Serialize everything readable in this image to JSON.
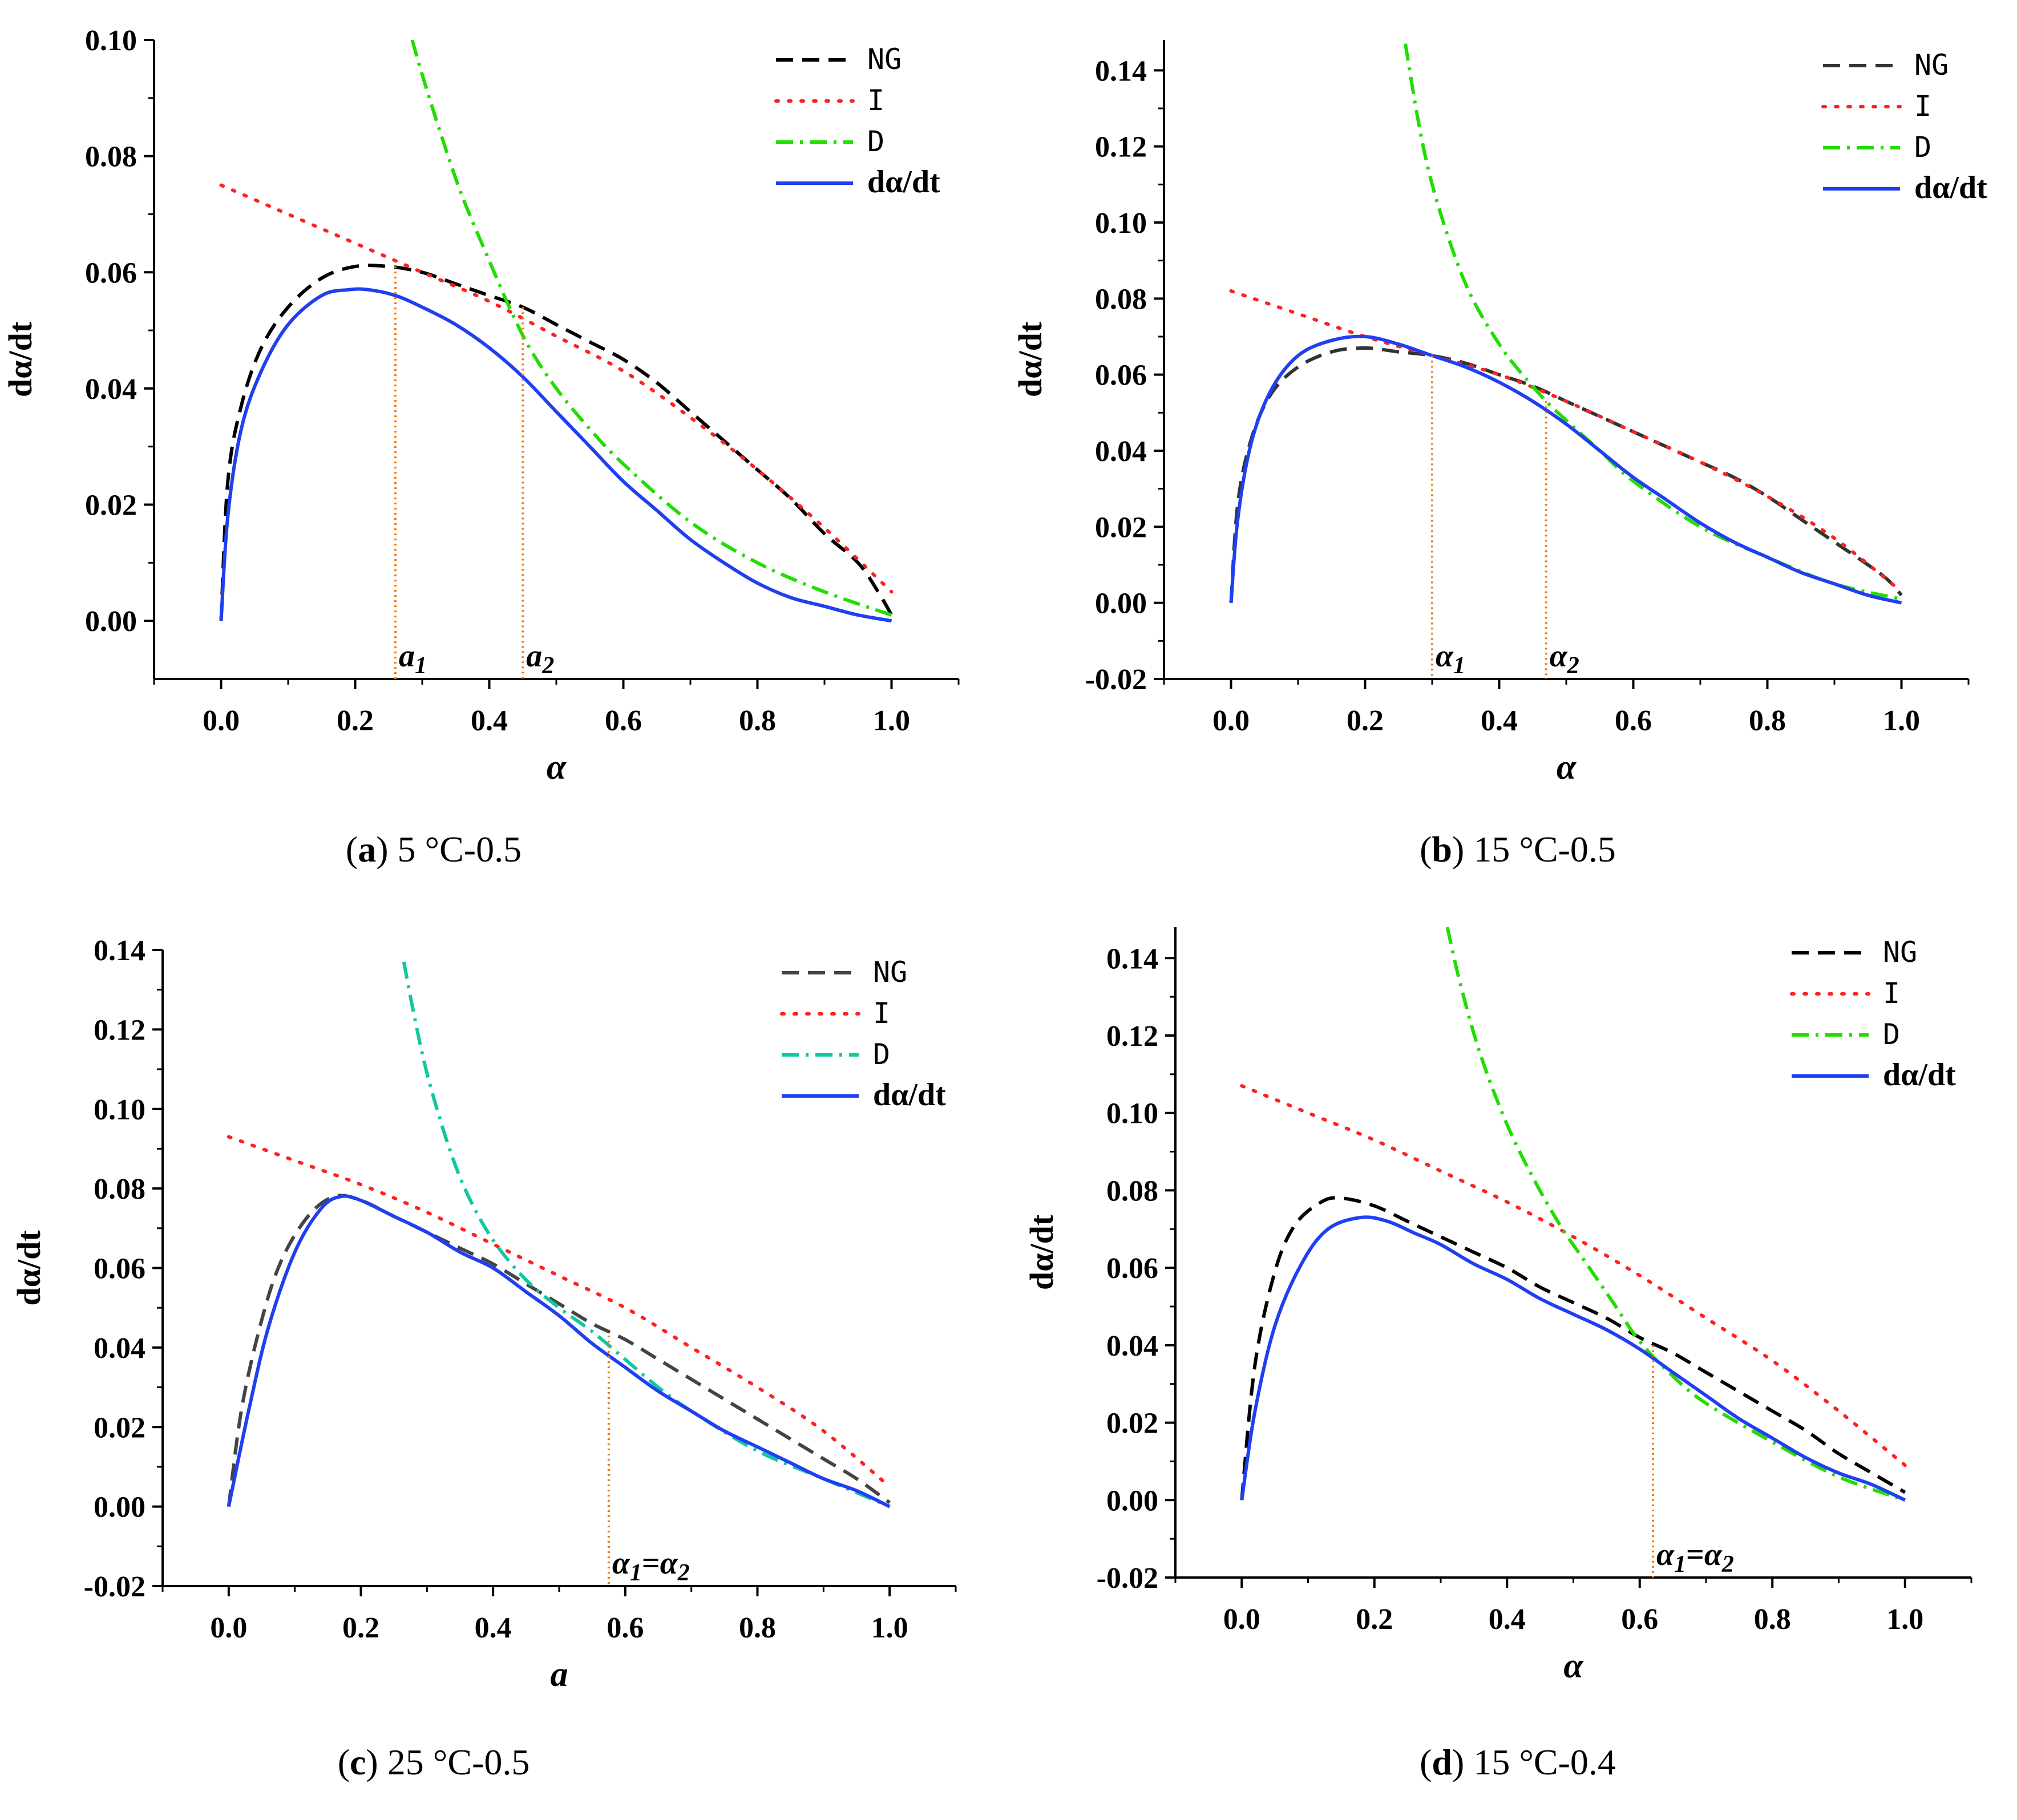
{
  "chart_data": [
    {
      "id": "a",
      "type": "line",
      "caption_letter": "a",
      "caption_text": " 5 °C-0.5",
      "xlabel": "α",
      "ylabel": "dα/dt",
      "xlim": [
        -0.1,
        1.1
      ],
      "ylim": [
        -0.01,
        0.1
      ],
      "xticks": [
        0.0,
        0.2,
        0.4,
        0.6,
        0.8,
        1.0
      ],
      "xtick_labels": [
        "0.0",
        "0.2",
        "0.4",
        "0.6",
        "0.8",
        "1.0"
      ],
      "yticks": [
        0.0,
        0.02,
        0.04,
        0.06,
        0.08,
        0.1
      ],
      "ytick_labels": [
        "0.00",
        "0.02",
        "0.04",
        "0.06",
        "0.08",
        "0.10"
      ],
      "legend_position": "top-right",
      "series": [
        {
          "name": "NG",
          "color": "#000000",
          "style": "dashed",
          "x": [
            0.0,
            0.01,
            0.03,
            0.06,
            0.1,
            0.15,
            0.2,
            0.25,
            0.3,
            0.35,
            0.4,
            0.45,
            0.5,
            0.55,
            0.6,
            0.65,
            0.7,
            0.75,
            0.8,
            0.85,
            0.9,
            0.95,
            0.98,
            1.0
          ],
          "y": [
            0.0,
            0.024,
            0.037,
            0.047,
            0.054,
            0.059,
            0.061,
            0.061,
            0.06,
            0.058,
            0.056,
            0.054,
            0.051,
            0.048,
            0.045,
            0.041,
            0.036,
            0.031,
            0.026,
            0.021,
            0.015,
            0.01,
            0.005,
            0.001
          ]
        },
        {
          "name": "I",
          "color": "#ff2020",
          "style": "dotted",
          "x": [
            0.0,
            0.1,
            0.2,
            0.3,
            0.4,
            0.5,
            0.6,
            0.7,
            0.8,
            0.9,
            1.0
          ],
          "y": [
            0.075,
            0.07,
            0.065,
            0.06,
            0.055,
            0.049,
            0.043,
            0.035,
            0.026,
            0.016,
            0.005
          ]
        },
        {
          "name": "D",
          "color": "#22dd00",
          "style": "dashdot",
          "x": [
            0.285,
            0.3,
            0.33,
            0.36,
            0.4,
            0.43,
            0.46,
            0.5,
            0.55,
            0.6,
            0.7,
            0.8,
            0.9,
            1.0
          ],
          "y": [
            0.1,
            0.094,
            0.083,
            0.073,
            0.062,
            0.054,
            0.047,
            0.04,
            0.033,
            0.027,
            0.017,
            0.01,
            0.005,
            0.001
          ]
        },
        {
          "name": "dα/dt",
          "color": "#1f3ff0",
          "style": "solid",
          "x": [
            0.0,
            0.01,
            0.03,
            0.06,
            0.1,
            0.15,
            0.19,
            0.22,
            0.26,
            0.3,
            0.35,
            0.4,
            0.45,
            0.5,
            0.55,
            0.6,
            0.65,
            0.7,
            0.75,
            0.8,
            0.85,
            0.9,
            0.95,
            1.0
          ],
          "y": [
            0.0,
            0.018,
            0.033,
            0.043,
            0.051,
            0.056,
            0.057,
            0.057,
            0.056,
            0.054,
            0.051,
            0.047,
            0.042,
            0.036,
            0.03,
            0.024,
            0.019,
            0.014,
            0.01,
            0.0065,
            0.004,
            0.0025,
            0.001,
            0.0
          ]
        }
      ],
      "annotations": [
        {
          "x": 0.26,
          "y": 0.061,
          "label_base": "a",
          "label_sub": "1"
        },
        {
          "x": 0.45,
          "y": 0.054,
          "label_base": "a",
          "label_sub": "2"
        }
      ]
    },
    {
      "id": "b",
      "type": "line",
      "caption_letter": "b",
      "caption_text": " 15 °C-0.5",
      "xlabel": "α",
      "ylabel": "dα/dt",
      "xlim": [
        -0.1,
        1.1
      ],
      "ylim": [
        -0.02,
        0.148
      ],
      "xticks": [
        0.0,
        0.2,
        0.4,
        0.6,
        0.8,
        1.0
      ],
      "xtick_labels": [
        "0.0",
        "0.2",
        "0.4",
        "0.6",
        "0.8",
        "1.0"
      ],
      "yticks": [
        -0.02,
        0.0,
        0.02,
        0.04,
        0.06,
        0.08,
        0.1,
        0.12,
        0.14
      ],
      "ytick_labels": [
        "-0.02",
        "0.00",
        "0.02",
        "0.04",
        "0.06",
        "0.08",
        "0.10",
        "0.12",
        "0.14"
      ],
      "legend_position": "top-right",
      "series": [
        {
          "name": "NG",
          "color": "#333333",
          "style": "dashed",
          "x": [
            0.0,
            0.01,
            0.03,
            0.06,
            0.1,
            0.15,
            0.2,
            0.25,
            0.3,
            0.35,
            0.4,
            0.45,
            0.5,
            0.55,
            0.6,
            0.65,
            0.7,
            0.75,
            0.8,
            0.85,
            0.9,
            0.95,
            0.98,
            1.0
          ],
          "y": [
            0.0,
            0.026,
            0.043,
            0.055,
            0.062,
            0.066,
            0.067,
            0.066,
            0.065,
            0.063,
            0.06,
            0.057,
            0.053,
            0.049,
            0.045,
            0.041,
            0.037,
            0.033,
            0.028,
            0.022,
            0.016,
            0.01,
            0.006,
            0.002
          ]
        },
        {
          "name": "I",
          "color": "#ff2020",
          "style": "dotted",
          "x": [
            0.0,
            0.1,
            0.2,
            0.3,
            0.4,
            0.5,
            0.6,
            0.7,
            0.8,
            0.9,
            1.0
          ],
          "y": [
            0.082,
            0.076,
            0.07,
            0.065,
            0.06,
            0.053,
            0.045,
            0.037,
            0.028,
            0.017,
            0.003
          ]
        },
        {
          "name": "D",
          "color": "#22dd00",
          "style": "dashdot",
          "x": [
            0.26,
            0.28,
            0.3,
            0.33,
            0.36,
            0.4,
            0.43,
            0.47,
            0.5,
            0.55,
            0.6,
            0.7,
            0.8,
            0.9,
            1.0
          ],
          "y": [
            0.147,
            0.126,
            0.11,
            0.093,
            0.08,
            0.068,
            0.061,
            0.053,
            0.048,
            0.04,
            0.032,
            0.02,
            0.012,
            0.005,
            0.001
          ]
        },
        {
          "name": "dα/dt",
          "color": "#1f3ff0",
          "style": "solid",
          "x": [
            0.0,
            0.01,
            0.03,
            0.06,
            0.1,
            0.15,
            0.2,
            0.25,
            0.3,
            0.35,
            0.4,
            0.45,
            0.5,
            0.55,
            0.6,
            0.65,
            0.7,
            0.75,
            0.8,
            0.85,
            0.9,
            0.95,
            1.0
          ],
          "y": [
            0.0,
            0.022,
            0.042,
            0.056,
            0.065,
            0.069,
            0.07,
            0.068,
            0.065,
            0.062,
            0.058,
            0.053,
            0.047,
            0.04,
            0.033,
            0.027,
            0.021,
            0.016,
            0.012,
            0.008,
            0.005,
            0.002,
            0.0
          ]
        }
      ],
      "annotations": [
        {
          "x": 0.3,
          "y": 0.065,
          "label_base": "α",
          "label_sub": "1"
        },
        {
          "x": 0.47,
          "y": 0.053,
          "label_base": "α",
          "label_sub": "2"
        }
      ]
    },
    {
      "id": "c",
      "type": "line",
      "caption_letter": "c",
      "caption_text": " 25 °C-0.5",
      "xlabel": "a",
      "ylabel": "dα/dt",
      "xlim": [
        -0.1,
        1.1
      ],
      "ylim": [
        -0.02,
        0.14
      ],
      "xticks": [
        0.0,
        0.2,
        0.4,
        0.6,
        0.8,
        1.0
      ],
      "xtick_labels": [
        "0.0",
        "0.2",
        "0.4",
        "0.6",
        "0.8",
        "1.0"
      ],
      "yticks": [
        -0.02,
        0.0,
        0.02,
        0.04,
        0.06,
        0.08,
        0.1,
        0.12,
        0.14
      ],
      "ytick_labels": [
        "-0.02",
        "0.00",
        "0.02",
        "0.04",
        "0.06",
        "0.08",
        "0.10",
        "0.12",
        "0.14"
      ],
      "legend_position": "top-right",
      "series": [
        {
          "name": "NG",
          "color": "#444444",
          "style": "dashed",
          "x": [
            0.0,
            0.02,
            0.05,
            0.08,
            0.12,
            0.16,
            0.2,
            0.25,
            0.3,
            0.35,
            0.4,
            0.45,
            0.5,
            0.55,
            0.6,
            0.65,
            0.7,
            0.75,
            0.8,
            0.85,
            0.9,
            0.95,
            1.0
          ],
          "y": [
            0.0,
            0.025,
            0.047,
            0.062,
            0.073,
            0.078,
            0.077,
            0.073,
            0.069,
            0.065,
            0.061,
            0.056,
            0.051,
            0.046,
            0.042,
            0.037,
            0.032,
            0.027,
            0.022,
            0.017,
            0.012,
            0.007,
            0.001
          ]
        },
        {
          "name": "I",
          "color": "#ff2020",
          "style": "dotted",
          "x": [
            0.0,
            0.1,
            0.2,
            0.3,
            0.4,
            0.5,
            0.6,
            0.7,
            0.8,
            0.9,
            1.0
          ],
          "y": [
            0.093,
            0.087,
            0.081,
            0.074,
            0.066,
            0.058,
            0.05,
            0.04,
            0.03,
            0.019,
            0.005
          ]
        },
        {
          "name": "D",
          "color": "#10c8a0",
          "style": "dashdot",
          "x": [
            0.265,
            0.28,
            0.3,
            0.33,
            0.36,
            0.4,
            0.45,
            0.5,
            0.55,
            0.6,
            0.65,
            0.7,
            0.8,
            0.9,
            1.0
          ],
          "y": [
            0.137,
            0.124,
            0.109,
            0.092,
            0.079,
            0.067,
            0.057,
            0.05,
            0.044,
            0.037,
            0.03,
            0.024,
            0.014,
            0.007,
            0.0
          ]
        },
        {
          "name": "dα/dt",
          "color": "#1f3ff0",
          "style": "solid",
          "x": [
            0.0,
            0.03,
            0.06,
            0.1,
            0.14,
            0.17,
            0.2,
            0.25,
            0.3,
            0.35,
            0.4,
            0.45,
            0.5,
            0.55,
            0.6,
            0.65,
            0.7,
            0.75,
            0.8,
            0.85,
            0.9,
            0.95,
            1.0
          ],
          "y": [
            0.0,
            0.024,
            0.045,
            0.064,
            0.075,
            0.078,
            0.077,
            0.073,
            0.069,
            0.064,
            0.06,
            0.054,
            0.048,
            0.041,
            0.035,
            0.029,
            0.024,
            0.019,
            0.015,
            0.011,
            0.007,
            0.004,
            0.0
          ]
        }
      ],
      "annotations": [
        {
          "x": 0.575,
          "y": 0.043,
          "label_base": "α",
          "label_sub": "1",
          "label_eq_base": "α",
          "label_eq_sub": "2"
        }
      ]
    },
    {
      "id": "d",
      "type": "line",
      "caption_letter": "d",
      "caption_text": " 15 °C-0.4",
      "xlabel": "α",
      "ylabel": "dα/dt",
      "xlim": [
        -0.1,
        1.1
      ],
      "ylim": [
        -0.02,
        0.148
      ],
      "xticks": [
        0.0,
        0.2,
        0.4,
        0.6,
        0.8,
        1.0
      ],
      "xtick_labels": [
        "0.0",
        "0.2",
        "0.4",
        "0.6",
        "0.8",
        "1.0"
      ],
      "yticks": [
        -0.02,
        0.0,
        0.02,
        0.04,
        0.06,
        0.08,
        0.1,
        0.12,
        0.14
      ],
      "ytick_labels": [
        "-0.02",
        "0.00",
        "0.02",
        "0.04",
        "0.06",
        "0.08",
        "0.10",
        "0.12",
        "0.14"
      ],
      "legend_position": "top-right",
      "series": [
        {
          "name": "NG",
          "color": "#000000",
          "style": "dashed",
          "x": [
            0.0,
            0.02,
            0.05,
            0.08,
            0.12,
            0.15,
            0.2,
            0.25,
            0.3,
            0.35,
            0.4,
            0.45,
            0.5,
            0.55,
            0.6,
            0.65,
            0.7,
            0.75,
            0.8,
            0.85,
            0.9,
            0.95,
            1.0
          ],
          "y": [
            0.0,
            0.035,
            0.059,
            0.071,
            0.077,
            0.078,
            0.076,
            0.072,
            0.068,
            0.064,
            0.06,
            0.055,
            0.051,
            0.047,
            0.042,
            0.038,
            0.033,
            0.028,
            0.023,
            0.018,
            0.012,
            0.007,
            0.002
          ]
        },
        {
          "name": "I",
          "color": "#ff2020",
          "style": "dotted",
          "x": [
            0.0,
            0.1,
            0.2,
            0.3,
            0.4,
            0.5,
            0.6,
            0.7,
            0.8,
            0.9,
            1.0
          ],
          "y": [
            0.107,
            0.1,
            0.093,
            0.085,
            0.077,
            0.068,
            0.058,
            0.047,
            0.036,
            0.023,
            0.009
          ]
        },
        {
          "name": "D",
          "color": "#22dd00",
          "style": "dashdot",
          "x": [
            0.31,
            0.33,
            0.36,
            0.4,
            0.44,
            0.48,
            0.52,
            0.56,
            0.6,
            0.65,
            0.7,
            0.8,
            0.9,
            1.0
          ],
          "y": [
            0.148,
            0.133,
            0.115,
            0.097,
            0.083,
            0.071,
            0.061,
            0.051,
            0.041,
            0.032,
            0.025,
            0.015,
            0.006,
            0.0
          ]
        },
        {
          "name": "dα/dt",
          "color": "#1f3ff0",
          "style": "solid",
          "x": [
            0.0,
            0.02,
            0.05,
            0.09,
            0.13,
            0.18,
            0.22,
            0.26,
            0.3,
            0.35,
            0.4,
            0.45,
            0.5,
            0.55,
            0.6,
            0.65,
            0.7,
            0.75,
            0.8,
            0.85,
            0.9,
            0.95,
            1.0
          ],
          "y": [
            0.0,
            0.023,
            0.045,
            0.061,
            0.07,
            0.073,
            0.072,
            0.069,
            0.066,
            0.061,
            0.057,
            0.052,
            0.048,
            0.044,
            0.039,
            0.033,
            0.027,
            0.021,
            0.016,
            0.011,
            0.007,
            0.004,
            0.0
          ]
        }
      ],
      "annotations": [
        {
          "x": 0.62,
          "y": 0.04,
          "label_base": "α",
          "label_sub": "1",
          "label_eq_base": "α",
          "label_eq_sub": "2"
        }
      ]
    }
  ]
}
